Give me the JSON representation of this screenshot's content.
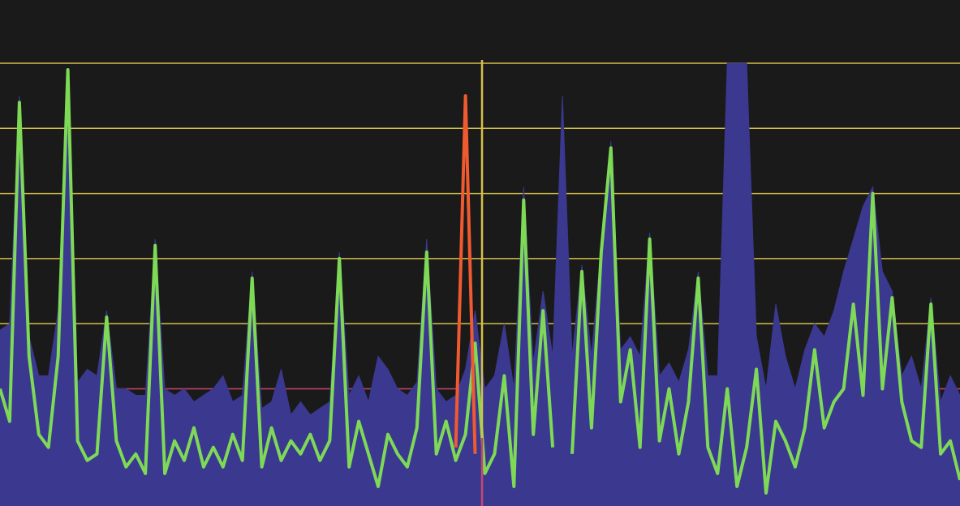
{
  "chart_data": {
    "type": "line",
    "ylim": [
      -0.8,
      6
    ],
    "yticks": [
      0,
      1,
      2,
      3,
      4,
      5,
      6
    ],
    "grid": true,
    "grid_colors": [
      "#c8466e",
      "#c8466e",
      "#d4c04a",
      "#d4c04a",
      "#d4c04a",
      "#d4c04a",
      "#d4c04a"
    ],
    "series": [
      {
        "kind": "area",
        "color": "#3b3890",
        "values": [
          1.9,
          2.0,
          5.5,
          1.8,
          1.2,
          1.2,
          2.2,
          5.9,
          1.1,
          1.3,
          1.2,
          2.2,
          1.0,
          1.0,
          0.9,
          0.9,
          3.3,
          1.0,
          0.9,
          1.0,
          0.8,
          0.9,
          1.0,
          1.2,
          0.8,
          0.9,
          2.8,
          0.7,
          0.8,
          1.3,
          0.6,
          0.8,
          0.6,
          0.7,
          0.8,
          3.1,
          0.9,
          1.2,
          0.8,
          1.5,
          1.3,
          1.0,
          0.9,
          1.1,
          3.3,
          1.0,
          0.8,
          0.9,
          1.3,
          2.2,
          1.0,
          1.2,
          2.0,
          1.0,
          4.1,
          1.4,
          2.5,
          1.5,
          5.5,
          1.5,
          2.9,
          1.5,
          3.2,
          4.8,
          1.6,
          1.8,
          1.5,
          3.4,
          1.2,
          1.4,
          1.1,
          1.6,
          2.8,
          1.2,
          1.2,
          6.0,
          6.0,
          6.0,
          1.8,
          1.0,
          2.3,
          1.5,
          1.0,
          1.6,
          2.0,
          1.8,
          2.2,
          2.8,
          3.3,
          3.8,
          4.1,
          2.8,
          2.5,
          1.2,
          1.5,
          1.0,
          2.4,
          0.8,
          1.2,
          0.9
        ]
      },
      {
        "kind": "line",
        "color": "#7ed957",
        "values": [
          1.0,
          0.5,
          5.4,
          1.5,
          0.3,
          0.1,
          1.5,
          5.9,
          0.2,
          -0.1,
          0.0,
          2.1,
          0.2,
          -0.2,
          0.0,
          -0.3,
          3.2,
          -0.3,
          0.2,
          -0.1,
          0.4,
          -0.2,
          0.1,
          -0.2,
          0.3,
          -0.1,
          2.7,
          -0.2,
          0.4,
          -0.1,
          0.2,
          0.0,
          0.3,
          -0.1,
          0.2,
          3.0,
          -0.2,
          0.5,
          0.0,
          -0.5,
          0.3,
          0.0,
          -0.2,
          0.4,
          3.1,
          0.0,
          0.5,
          -0.1,
          0.3,
          1.7,
          -0.3,
          0.0,
          1.2,
          -0.5,
          3.9,
          0.3,
          2.2,
          0.1,
          null,
          0.0,
          2.8,
          0.4,
          3.1,
          4.7,
          0.8,
          1.6,
          0.1,
          3.3,
          0.2,
          1.0,
          0.0,
          0.8,
          2.7,
          0.1,
          -0.3,
          1.0,
          -0.5,
          0.1,
          1.3,
          -0.6,
          0.5,
          0.2,
          -0.2,
          0.4,
          1.6,
          0.4,
          0.8,
          1.0,
          2.3,
          0.9,
          4.0,
          1.0,
          2.4,
          0.8,
          0.2,
          0.1,
          2.3,
          0.0,
          0.2,
          -0.4
        ]
      },
      {
        "kind": "line",
        "color": "#f05a30",
        "values": [
          null,
          null,
          null,
          null,
          null,
          null,
          null,
          null,
          null,
          null,
          null,
          null,
          null,
          null,
          null,
          null,
          null,
          null,
          null,
          null,
          null,
          null,
          null,
          null,
          null,
          null,
          null,
          null,
          null,
          null,
          null,
          null,
          null,
          null,
          null,
          null,
          null,
          null,
          null,
          null,
          null,
          null,
          null,
          null,
          null,
          null,
          null,
          0.1,
          5.5,
          0.0,
          null,
          null,
          null,
          null,
          null,
          null,
          null,
          null,
          null,
          null,
          null,
          null,
          null,
          null,
          null,
          null,
          null,
          null,
          null,
          null,
          null,
          null,
          null,
          null,
          null,
          null,
          null,
          null,
          null,
          null,
          null,
          null,
          null,
          null,
          null,
          null,
          null,
          null,
          null,
          null,
          null,
          null,
          null,
          null,
          null,
          null,
          null,
          null,
          null,
          null
        ]
      }
    ]
  }
}
